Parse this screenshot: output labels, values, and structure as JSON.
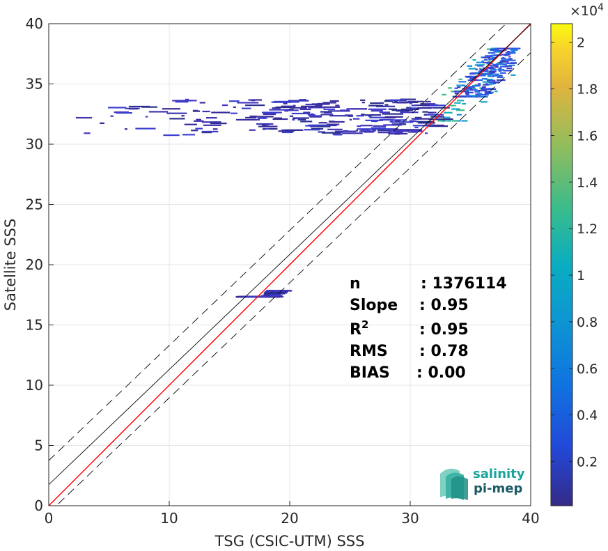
{
  "chart_data": {
    "type": "heatmap",
    "title": "",
    "xlabel": "TSG (CSIC-UTM) SSS",
    "ylabel": "Satellite SSS",
    "xlim": [
      0,
      40
    ],
    "ylim": [
      0,
      40
    ],
    "xticks": [
      "0",
      "10",
      "20",
      "30",
      "40"
    ],
    "yticks": [
      "0",
      "5",
      "10",
      "15",
      "20",
      "25",
      "30",
      "35",
      "40"
    ],
    "grid": true,
    "colorbar": {
      "ticks": [
        "0.2",
        "0.4",
        "0.6",
        "0.8",
        "1",
        "1.2",
        "1.4",
        "1.6",
        "1.8",
        "2"
      ],
      "tick_values": [
        0.2,
        0.4,
        0.6,
        0.8,
        1.0,
        1.2,
        1.4,
        1.6,
        1.8,
        2.0
      ],
      "exponent_base": "×10",
      "exponent_power": "4",
      "range": [
        0.01,
        2.08
      ]
    },
    "lines": [
      {
        "label": "identity",
        "slope": 1.0,
        "intercept": 0.0,
        "color": "#ff0000",
        "style": "solid"
      },
      {
        "label": "regression",
        "slope": 0.955,
        "intercept": 1.75,
        "color": "#000000",
        "style": "solid"
      },
      {
        "label": "upper bound",
        "slope": 0.955,
        "intercept": 3.75,
        "color": "#000000",
        "style": "dashed"
      },
      {
        "label": "lower bound",
        "slope": 0.955,
        "intercept": -0.6,
        "color": "#000000",
        "style": "dashed"
      }
    ],
    "density_clusters": [
      {
        "x": [
          32.0,
          38.5
        ],
        "y": [
          32.0,
          38.0
        ],
        "level": "high"
      },
      {
        "x": [
          33.5,
          38.5
        ],
        "y": [
          34.0,
          38.0
        ],
        "level": "medium"
      },
      {
        "x": [
          0.5,
          32.0
        ],
        "y": [
          30.8,
          33.8
        ],
        "level": "low"
      },
      {
        "x": [
          15.5,
          18.5
        ],
        "y": [
          17.4,
          17.9
        ],
        "level": "low"
      }
    ],
    "stats": [
      {
        "key": "n",
        "value": ": 1376114"
      },
      {
        "key": "Slope",
        "value": ": 0.95"
      },
      {
        "key": "R",
        "sup": "2",
        "value": ": 0.95"
      },
      {
        "key": "RMS",
        "value": ": 0.78"
      },
      {
        "key": "BIAS",
        "value": ": 0.00"
      }
    ]
  },
  "logo": {
    "line1": "salinity",
    "line2": "pi-mep"
  },
  "colors": {
    "identity": "#ff0000",
    "regression": "#000000",
    "logo_teal": "#1aa49a",
    "logo_dark": "#1a5a63"
  }
}
